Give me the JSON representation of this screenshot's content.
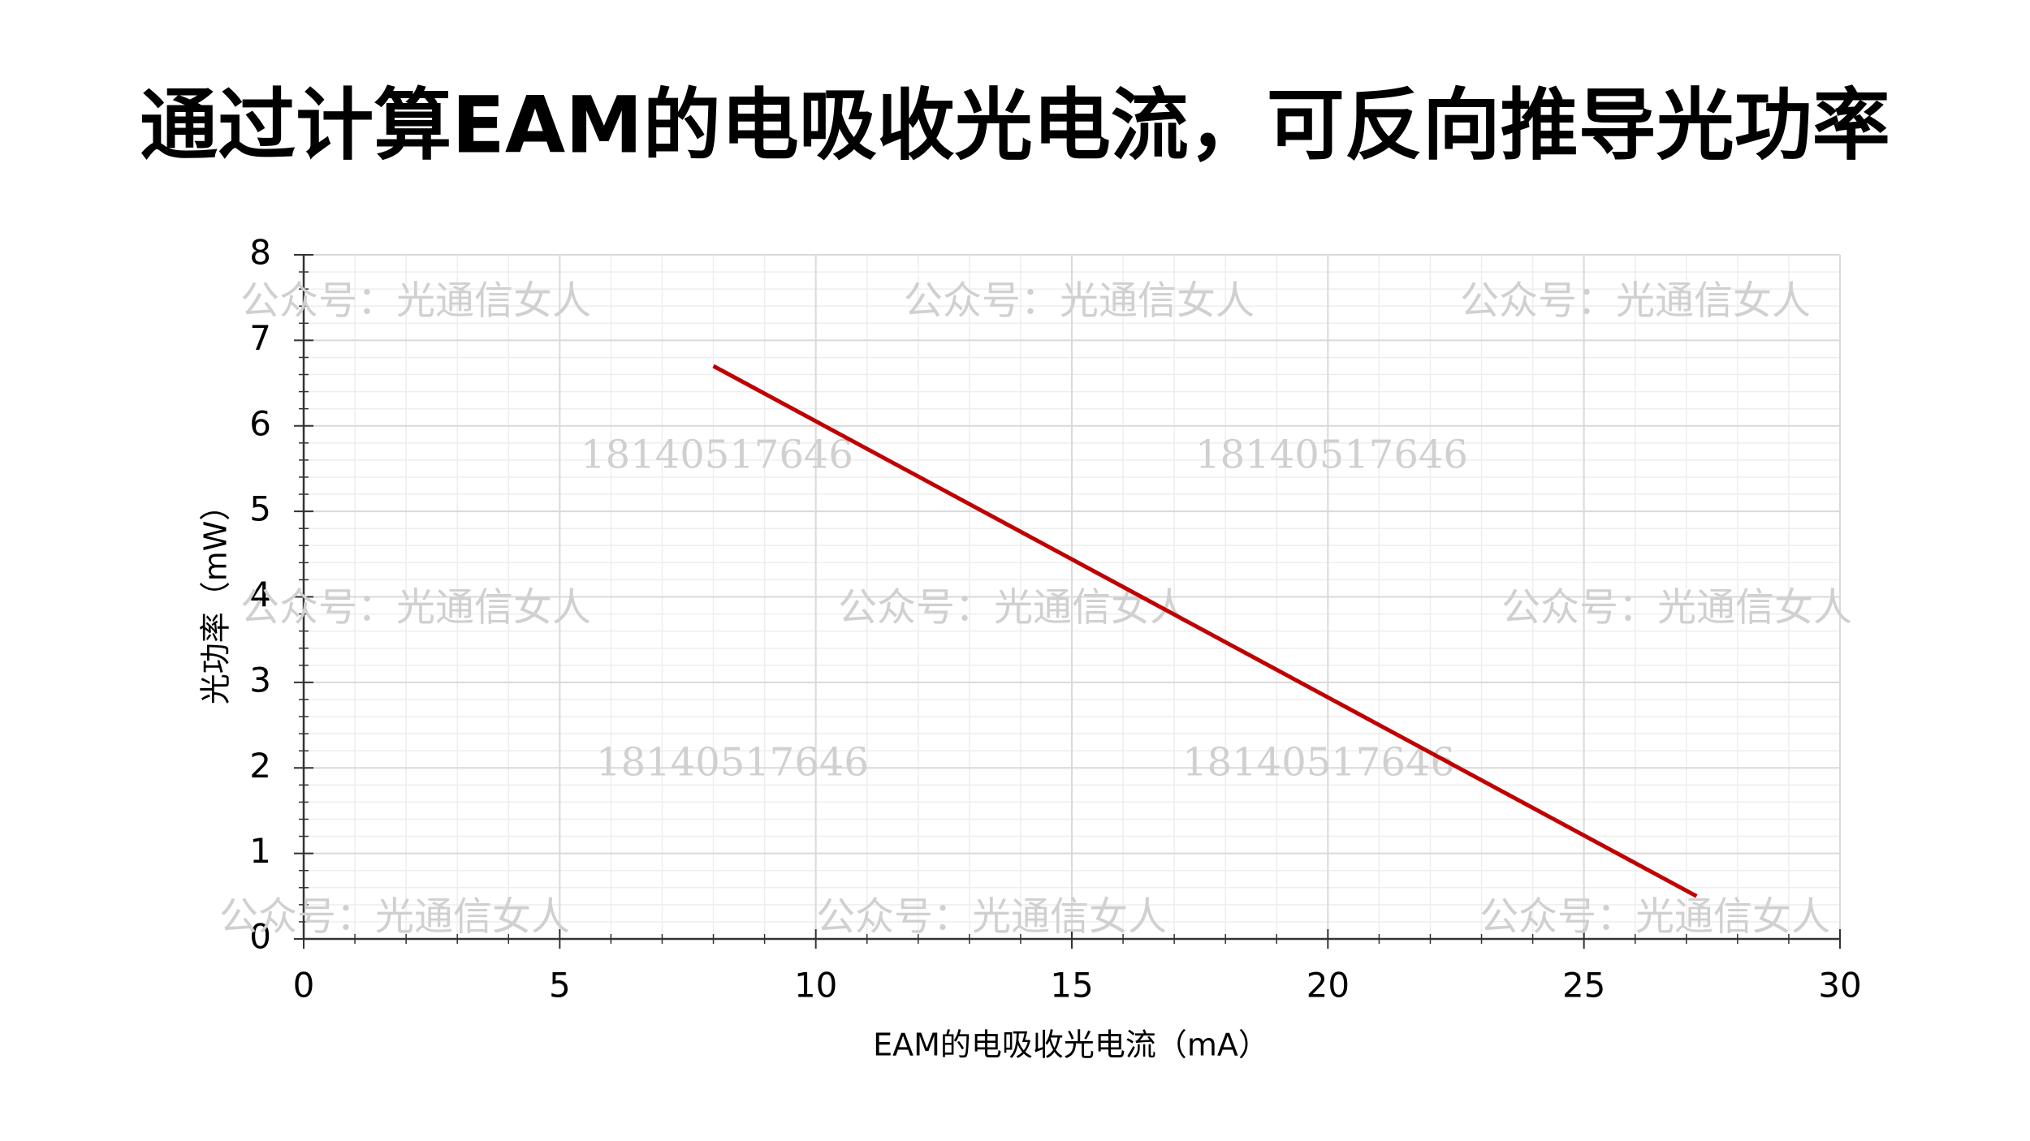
{
  "chart_data": {
    "type": "line",
    "title": "通过计算EAM的电吸收光电流，可反向推导光功率",
    "x_label": "EAM的电吸收光电流（mA）",
    "y_label": "光功率（mW）",
    "x": [
      8,
      27.2
    ],
    "series": [
      {
        "name": "光功率",
        "color": "#c00000",
        "values": [
          6.7,
          0.5
        ]
      }
    ],
    "xlim": [
      0,
      30
    ],
    "xticks": [
      0,
      5,
      10,
      15,
      20,
      25,
      30
    ],
    "ylim": [
      0,
      8
    ],
    "yticks": [
      0,
      1,
      2,
      3,
      4,
      5,
      6,
      7,
      8
    ],
    "grid": true,
    "watermarks": [
      "公众号：光通信女人",
      "18140517646"
    ]
  }
}
